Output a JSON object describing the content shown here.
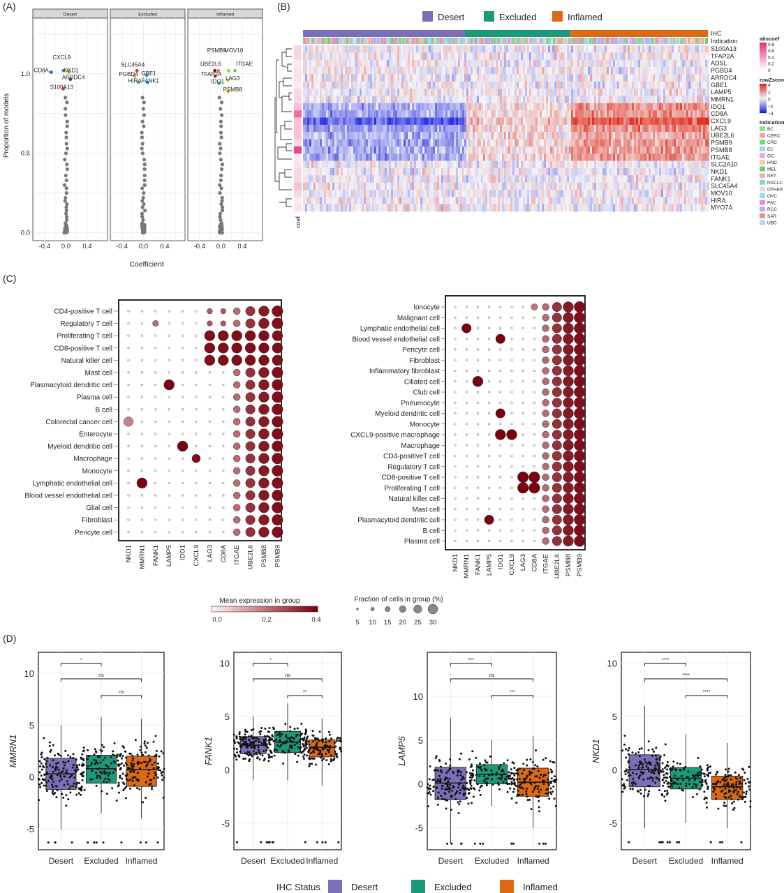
{
  "panels": {
    "A": {
      "letter": "(A)",
      "facets": [
        "Desert",
        "Excluded",
        "Inflamed"
      ],
      "ylabel": "Proportion of models",
      "xlabel": "Coefficient",
      "xticks": [
        "-0.4",
        "0.0",
        "0.4"
      ],
      "yticks": [
        "0.0",
        "0.5",
        "1.0"
      ],
      "labels": {
        "Desert": [
          {
            "t": "CXCL9",
            "x": -0.08,
            "y": 1.09,
            "c": "#4a78e0"
          },
          {
            "t": "CD8A",
            "x": -0.46,
            "y": 1.01,
            "c": "#2d55c8"
          },
          {
            "t": "NKD1",
            "x": 0.1,
            "y": 1.01,
            "c": "#c9b800"
          },
          {
            "t": "ARRDC4",
            "x": 0.14,
            "y": 0.965,
            "c": "#5a2a8a"
          },
          {
            "t": "S100A13",
            "x": -0.08,
            "y": 0.905,
            "c": "#e0511c"
          }
        ],
        "Excluded": [
          {
            "t": "SLC45A4",
            "x": -0.2,
            "y": 1.045,
            "c": "#d14a1a"
          },
          {
            "t": "PGBD4",
            "x": -0.28,
            "y": 0.985,
            "c": "#f39b22"
          },
          {
            "t": "GBE1",
            "x": 0.1,
            "y": 0.99,
            "c": "#2e9fdb"
          },
          {
            "t": "HIRA",
            "x": -0.16,
            "y": 0.945,
            "c": "#3fc0c0"
          },
          {
            "t": "FANK1",
            "x": 0.13,
            "y": 0.945,
            "c": "#1f88c8"
          }
        ],
        "Inflamed": [
          {
            "t": "PSMB9",
            "x": -0.08,
            "y": 1.135,
            "c": "#f07830"
          },
          {
            "t": "MOV10",
            "x": 0.24,
            "y": 1.135,
            "c": "#9bd03a"
          },
          {
            "t": "UBE2L6",
            "x": -0.19,
            "y": 1.05,
            "c": "#7a1a1a"
          },
          {
            "t": "ITGAE",
            "x": 0.44,
            "y": 1.05,
            "c": "#66d040"
          },
          {
            "t": "TFAP2A",
            "x": -0.18,
            "y": 0.985,
            "c": "#c02020"
          },
          {
            "t": "LAG3",
            "x": 0.22,
            "y": 0.96,
            "c": "#e8b400"
          },
          {
            "t": "IDO1",
            "x": -0.06,
            "y": 0.94,
            "c": "#20c0a0"
          },
          {
            "t": "PSMB8",
            "x": 0.22,
            "y": 0.89,
            "c": "#f0a020"
          }
        ]
      }
    },
    "B": {
      "letter": "(B)",
      "legend": [
        {
          "label": "Desert",
          "color": "#7b6fb8"
        },
        {
          "label": "Excluded",
          "color": "#1a9a78"
        },
        {
          "label": "Inflamed",
          "color": "#dd6a12"
        }
      ],
      "track_labels": [
        "IHC",
        "Indication"
      ],
      "genes": [
        "S100A13",
        "TFAP2A",
        "ADSL",
        "PGBD4",
        "ARRDC4",
        "GBE1",
        "LAMP5",
        "MMRN1",
        "IDO1",
        "CD8A",
        "CXCL9",
        "LAG3",
        "UBE2L6",
        "PSMB9",
        "PSMB8",
        "ITGAE",
        "SLC2A10",
        "NKD1",
        "FANK1",
        "SLC45A4",
        "MOV10",
        "HIRA",
        "MYO7A"
      ],
      "coef_label": "coef",
      "coef_values": [
        0.2,
        0.2,
        0.1,
        0.15,
        0.15,
        0.1,
        0.2,
        0.2,
        0.3,
        0.7,
        0.3,
        0.3,
        0.3,
        0.2,
        0.9,
        0.1,
        0.15,
        0.2,
        0.2,
        0.3,
        0.2,
        0.1,
        0.15
      ],
      "legend_abscoef": {
        "title": "abscoef",
        "ticks": [
          "0.8",
          "0.6",
          "0.4",
          "0.2",
          "0"
        ]
      },
      "legend_rowz": {
        "title": "rowZscore",
        "ticks": [
          "4",
          "2",
          "0",
          "−2",
          "−4"
        ]
      },
      "legend_indication": {
        "title": "Indication",
        "items": [
          {
            "label": "BC",
            "color": "#8ee28e"
          },
          {
            "label": "CERC",
            "color": "#f0a0a8"
          },
          {
            "label": "CRC",
            "color": "#6ee06e"
          },
          {
            "label": "EC",
            "color": "#a8d0f0"
          },
          {
            "label": "GC",
            "color": "#f0a8d8"
          },
          {
            "label": "HNC",
            "color": "#f8c8a8"
          },
          {
            "label": "MEL",
            "color": "#78c878"
          },
          {
            "label": "NET",
            "color": "#f0b0c8"
          },
          {
            "label": "NSCLC",
            "color": "#80e0b0"
          },
          {
            "label": "OTHER",
            "color": "#e0e0e0"
          },
          {
            "label": "OVC",
            "color": "#90e0e8"
          },
          {
            "label": "PAC",
            "color": "#e090d8"
          },
          {
            "label": "RCC",
            "color": "#b8b0f0"
          },
          {
            "label": "SAR",
            "color": "#f09090"
          },
          {
            "label": "UBC",
            "color": "#b0d8f8"
          }
        ]
      },
      "group_fractions": [
        0.4,
        0.26,
        0.34
      ]
    },
    "C": {
      "letter": "(C)",
      "left": {
        "genes": [
          "NKD1",
          "MMRN1",
          "FANK1",
          "LAMP5",
          "IDO1",
          "CXCL9",
          "LAG3",
          "CD8A",
          "ITGAE",
          "UBE2L6",
          "PSMB8",
          "PSMB9"
        ],
        "cells": [
          "CD4-positive T cell",
          "Regulatory T cell",
          "Proliferating T cell",
          "CD8-positive T cell",
          "Natural killer cell",
          "Mast cell",
          "Plasmacytoid dendritic cell",
          "Plasma cell",
          "B cell",
          "Colorectal cancer cell",
          "Enterocyte",
          "Myeloid dendritic cell",
          "Macrophage",
          "Monocyte",
          "Lymphatic endothelial cell",
          "Blood vessel endothelial cell",
          "Glial cell",
          "Fibroblast",
          "Pericyte cell"
        ]
      },
      "right": {
        "genes": [
          "NKD1",
          "MMRN1",
          "FANK1",
          "LAMP5",
          "IDO1",
          "CXCL9",
          "LAG3",
          "CD8A",
          "ITGAE",
          "UBE2L6",
          "PSMB8",
          "PSMB9"
        ],
        "cells": [
          "Ionocyte",
          "Malignant cell",
          "Lymphatic endothelial cell",
          "Blood vessel endothelial cell",
          "Pericyte cell",
          "Fibroblast",
          "Inflammatory fibroblast",
          "Ciliated cell",
          "Club cell",
          "Pneumocyte",
          "Myeloid dendritic cell",
          "Monocyte",
          "CXCL9-positive macrophage",
          "Macrophage",
          "CD4-positiveT cell",
          "Regulatory T cell",
          "CD8-positive T cell",
          "Proliferating T cell",
          "Natural killer cell",
          "Mast cell",
          "Plasmacytoid dendritic cell",
          "B cell",
          "Plasma cell"
        ]
      },
      "legend_expr": {
        "title": "Mean expression in group",
        "ticks": [
          "0.0",
          "0.2",
          "0.4"
        ]
      },
      "legend_frac": {
        "title": "Fraction of cells in group (%)",
        "ticks": [
          "5",
          "10",
          "15",
          "20",
          "25",
          "30"
        ]
      }
    },
    "D": {
      "letter": "(D)",
      "xcats": [
        "Desert",
        "Excluded",
        "Inflamed"
      ],
      "colors": [
        "#7b6fb8",
        "#1a9a78",
        "#dd6a12"
      ],
      "plots": [
        {
          "gene": "MMRN1",
          "ylim": [
            -7,
            12
          ],
          "yticks": [
            "-5",
            "0",
            "5",
            "10"
          ],
          "yvals": [
            -5,
            0,
            5,
            10
          ],
          "box": [
            {
              "q1": -1.2,
              "med": 0.3,
              "q3": 1.8,
              "lo": -5,
              "hi": 5
            },
            {
              "q1": -0.6,
              "med": 0.8,
              "q3": 2.1,
              "lo": -3.5,
              "hi": 5.8
            },
            {
              "q1": -0.9,
              "med": 0.7,
              "q3": 2.0,
              "lo": -4,
              "hi": 5.6
            }
          ],
          "sig": [
            "*",
            "ns",
            "ns"
          ]
        },
        {
          "gene": "FANK1",
          "ylim": [
            -7.5,
            11
          ],
          "yticks": [
            "-5",
            "0",
            "5",
            "10"
          ],
          "yvals": [
            -5,
            0,
            5,
            10
          ],
          "box": [
            {
              "q1": 1.5,
              "med": 2.3,
              "q3": 3.1,
              "lo": -1,
              "hi": 5
            },
            {
              "q1": 1.6,
              "med": 2.6,
              "q3": 3.6,
              "lo": -1,
              "hi": 6.2
            },
            {
              "q1": 1.2,
              "med": 2.1,
              "q3": 2.8,
              "lo": -1.5,
              "hi": 4.8
            }
          ],
          "sig": [
            "*",
            "ns",
            "**"
          ]
        },
        {
          "gene": "LAMP5",
          "ylim": [
            -7.5,
            15
          ],
          "yticks": [
            "-5",
            "0",
            "5",
            "10"
          ],
          "yvals": [
            -5,
            0,
            5,
            10
          ],
          "box": [
            {
              "q1": -1.8,
              "med": 0.1,
              "q3": 1.9,
              "lo": -6.8,
              "hi": 7.5
            },
            {
              "q1": 0,
              "med": 1.1,
              "q3": 2.2,
              "lo": -2.5,
              "hi": 5
            },
            {
              "q1": -1.4,
              "med": 0.2,
              "q3": 1.8,
              "lo": -5,
              "hi": 5.5
            }
          ],
          "sig": [
            "***",
            "ns",
            "***"
          ]
        },
        {
          "gene": "NKD1",
          "ylim": [
            -7.5,
            11
          ],
          "yticks": [
            "-5",
            "0",
            "5",
            "10"
          ],
          "yvals": [
            -5,
            0,
            5,
            10
          ],
          "box": [
            {
              "q1": -1.6,
              "med": 0,
              "q3": 1.4,
              "lo": -5.5,
              "hi": 6
            },
            {
              "q1": -1.8,
              "med": -0.8,
              "q3": 0.2,
              "lo": -5,
              "hi": 3.3
            },
            {
              "q1": -2.8,
              "med": -1.6,
              "q3": -0.6,
              "lo": -5.5,
              "hi": 2.5
            }
          ],
          "sig": [
            "****",
            "****",
            "****"
          ]
        }
      ],
      "legend_title": "IHC Status"
    }
  }
}
